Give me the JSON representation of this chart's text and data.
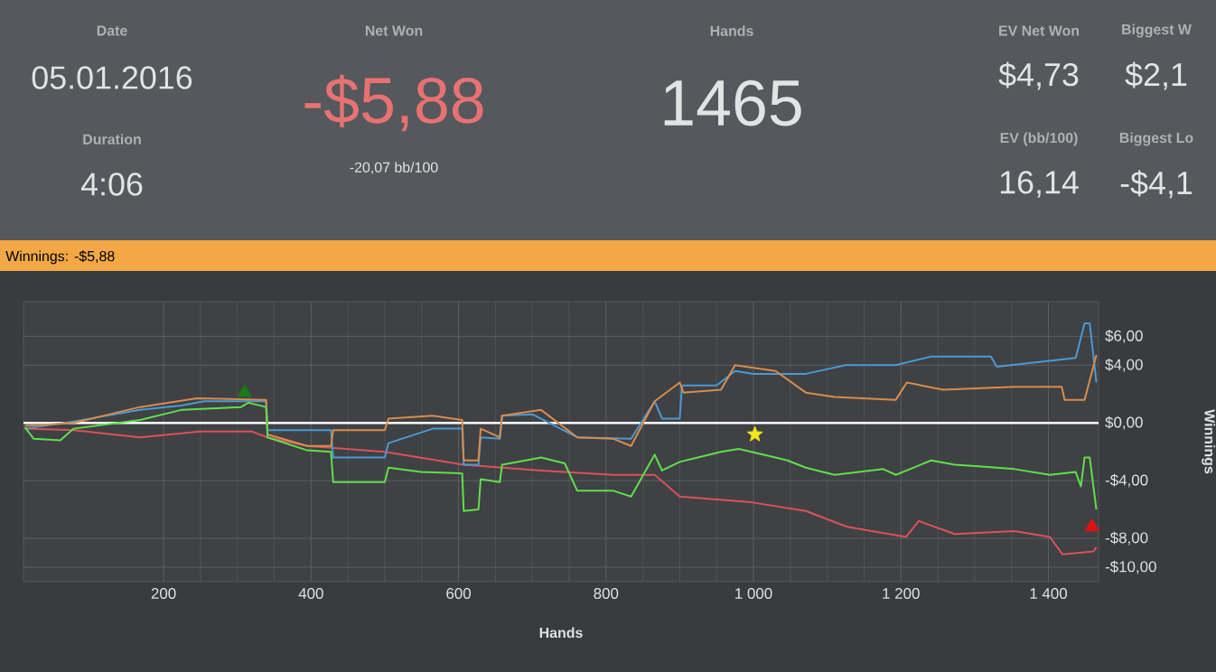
{
  "chart_data": [
    {
      "type": "other",
      "annotations": [
        "Date",
        "05.01.2016",
        "Duration",
        "4:06",
        "Net Won",
        "-$5,88",
        "-20,07 bb/100",
        "Hands",
        "1465",
        "EV Net Won",
        "$4,73",
        "EV (bb/100)",
        "16,14",
        "Biggest W",
        "$2,1",
        "Biggest Lo",
        "-$4,1"
      ]
    },
    {
      "type": "line",
      "title": "Winnings: -$5,88",
      "xlabel": "Hands",
      "ylabel": "Winnings",
      "xlim": [
        10,
        1468
      ],
      "ylim": [
        -11,
        8.4
      ],
      "xticks": [
        200,
        400,
        600,
        800,
        {
          "value": 1000,
          "label": "1 000"
        },
        {
          "value": 1200,
          "label": "1 200"
        },
        {
          "value": 1400,
          "label": "1 400"
        }
      ],
      "yticks": [
        {
          "value": 6,
          "label": "$6,00"
        },
        {
          "value": 4,
          "label": "$4,00"
        },
        {
          "value": 0,
          "label": "$0,00"
        },
        {
          "value": -4,
          "label": "-$4,00"
        },
        {
          "value": -8,
          "label": "-$8,00"
        },
        {
          "value": -10,
          "label": "-$10,00"
        }
      ],
      "grid": true,
      "ref_lines": [
        {
          "axis": "y",
          "value": 0,
          "color": "#ffffff"
        }
      ],
      "series": [
        {
          "type": "line",
          "color": "#d9525a",
          "x": [
            12,
            78,
            168,
            249,
            320,
            341,
            395,
            500,
            607,
            712,
            810,
            866,
            900,
            997,
            1071,
            1127,
            1207,
            1224,
            1273,
            1354,
            1402,
            1419,
            1461,
            1465
          ],
          "values": [
            -0.4,
            -0.5,
            -1.0,
            -0.6,
            -0.6,
            -1.0,
            -1.6,
            -2.0,
            -2.9,
            -3.3,
            -3.6,
            -3.6,
            -5.1,
            -5.5,
            -6.1,
            -7.2,
            -7.9,
            -6.8,
            -7.7,
            -7.5,
            -7.9,
            -9.1,
            -8.9,
            -8.6
          ]
        },
        {
          "type": "line",
          "color": "#4a9ad4",
          "x": [
            12,
            78,
            168,
            224,
            255,
            339,
            341,
            427,
            430,
            500,
            505,
            565,
            605,
            607,
            627,
            630,
            656,
            659,
            700,
            761,
            834,
            866,
            876,
            900,
            903,
            950,
            975,
            1000,
            1071,
            1125,
            1193,
            1241,
            1322,
            1330,
            1437,
            1449,
            1456,
            1465
          ],
          "values": [
            -0.4,
            0.1,
            0.9,
            1.2,
            1.5,
            1.5,
            -0.5,
            -0.5,
            -2.4,
            -2.4,
            -1.4,
            -0.4,
            -0.4,
            -2.9,
            -2.9,
            -1.0,
            -1.1,
            0.5,
            0.6,
            -1.0,
            -1.1,
            1.5,
            0.3,
            0.3,
            2.6,
            2.6,
            3.6,
            3.4,
            3.4,
            4.0,
            4.0,
            4.6,
            4.6,
            3.9,
            4.5,
            6.9,
            6.9,
            2.8
          ]
        },
        {
          "type": "line",
          "color": "#d98c4a",
          "x": [
            12,
            78,
            168,
            245,
            339,
            341,
            395,
            427,
            430,
            500,
            505,
            565,
            605,
            607,
            627,
            630,
            656,
            659,
            712,
            761,
            810,
            834,
            866,
            900,
            905,
            956,
            975,
            1030,
            1071,
            1110,
            1193,
            1208,
            1257,
            1354,
            1418,
            1422,
            1449,
            1465
          ],
          "values": [
            -0.2,
            0.0,
            1.1,
            1.7,
            1.6,
            -0.8,
            -1.6,
            -1.6,
            -0.5,
            -0.5,
            0.3,
            0.5,
            0.2,
            -2.6,
            -2.6,
            -0.4,
            -1.0,
            0.5,
            0.9,
            -1.0,
            -1.1,
            -1.6,
            1.5,
            2.8,
            2.1,
            2.3,
            4.0,
            3.6,
            2.1,
            1.8,
            1.6,
            2.8,
            2.3,
            2.5,
            2.5,
            1.6,
            1.6,
            4.7
          ]
        },
        {
          "type": "line",
          "color": "#5fe04a",
          "x": [
            12,
            24,
            60,
            78,
            168,
            224,
            305,
            315,
            339,
            341,
            395,
            427,
            430,
            500,
            505,
            549,
            605,
            607,
            627,
            630,
            656,
            659,
            712,
            744,
            761,
            810,
            834,
            866,
            876,
            900,
            956,
            980,
            1022,
            1046,
            1071,
            1110,
            1176,
            1193,
            1241,
            1273,
            1305,
            1354,
            1402,
            1437,
            1444,
            1449,
            1456,
            1465
          ],
          "values": [
            -0.3,
            -1.1,
            -1.2,
            -0.4,
            0.2,
            0.9,
            1.1,
            1.4,
            1.1,
            -1.0,
            -1.9,
            -2.0,
            -4.1,
            -4.1,
            -3.1,
            -3.4,
            -3.5,
            -6.1,
            -6.0,
            -3.9,
            -4.1,
            -2.9,
            -2.4,
            -2.8,
            -4.7,
            -4.7,
            -5.1,
            -2.2,
            -3.3,
            -2.7,
            -2.0,
            -1.8,
            -2.3,
            -2.6,
            -3.1,
            -3.6,
            -3.2,
            -3.6,
            -2.6,
            -2.9,
            -3.0,
            -3.2,
            -3.6,
            -3.4,
            -4.4,
            -2.4,
            -2.4,
            -6.0
          ]
        },
        {
          "type": "scatter",
          "marker": "triangle",
          "color": "#1a7a1a",
          "x": [
            310
          ],
          "values": [
            2.1
          ]
        },
        {
          "type": "scatter",
          "marker": "star",
          "color": "#f5e61c",
          "x": [
            1002
          ],
          "values": [
            -0.8
          ]
        },
        {
          "type": "scatter",
          "marker": "triangle",
          "color": "#e01010",
          "x": [
            1459
          ],
          "values": [
            -7.2
          ]
        }
      ]
    }
  ]
}
